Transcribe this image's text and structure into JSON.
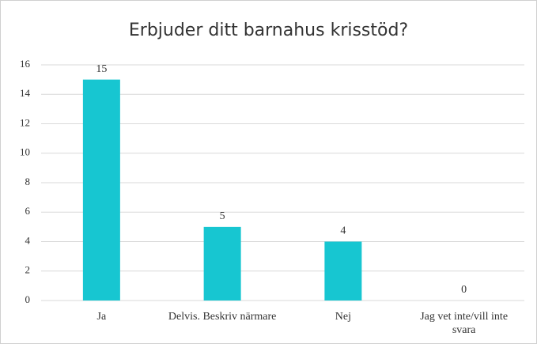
{
  "chart_data": {
    "type": "bar",
    "title": "Erbjuder ditt barnahus krisstöd?",
    "categories": [
      "Ja",
      "Delvis. Beskriv närmare",
      "Nej",
      "Jag vet inte/vill inte svara"
    ],
    "values": [
      15,
      5,
      4,
      0
    ],
    "color": "#17c6d1",
    "ylim": [
      0,
      16
    ],
    "yticks": [
      0,
      2,
      4,
      6,
      8,
      10,
      12,
      14,
      16
    ],
    "grid": true
  }
}
